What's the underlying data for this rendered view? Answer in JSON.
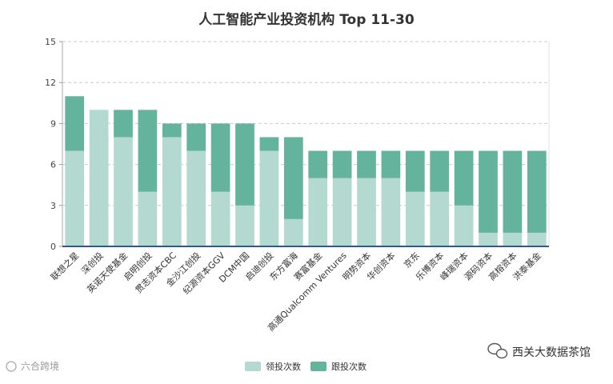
{
  "watermark_left": "六合跨境",
  "watermark_right": "西关大数据茶馆",
  "chart_data": {
    "type": "bar",
    "stacked": true,
    "title": "人工智能产业投资机构 Top 11-30",
    "categories": [
      "联想之星",
      "深创投",
      "英诺天使基金",
      "启明创投",
      "贯志资本CBC",
      "金沙江创投",
      "纪源资本GGV",
      "DCM中国",
      "启迪创投",
      "东方富海",
      "赛富基金",
      "高通Qualcomm Ventures",
      "明势资本",
      "华创资本",
      "京东",
      "乐博资本",
      "峰瑞资本",
      "源码资本",
      "高榕资本",
      "洪泰基金"
    ],
    "series": [
      {
        "name": "领投次数",
        "color": "#b3d9d0",
        "values": [
          7,
          10,
          8,
          4,
          8,
          7,
          4,
          3,
          7,
          2,
          5,
          5,
          5,
          5,
          4,
          4,
          3,
          1,
          1,
          1
        ]
      },
      {
        "name": "跟投次数",
        "color": "#63b39d",
        "values": [
          4,
          0,
          2,
          6,
          1,
          2,
          5,
          6,
          1,
          6,
          2,
          2,
          2,
          2,
          3,
          3,
          4,
          6,
          6,
          6
        ]
      }
    ],
    "ylim": [
      0,
      15
    ],
    "yticks": [
      0,
      3,
      6,
      9,
      12,
      15
    ],
    "xlabel": "",
    "ylabel": "",
    "grid": true,
    "legend": "bottom-center"
  }
}
